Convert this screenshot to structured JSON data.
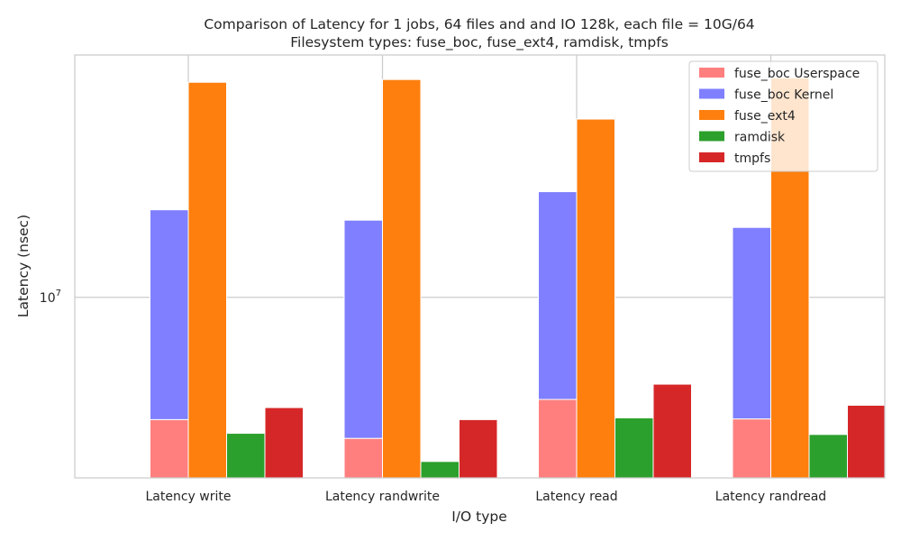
{
  "chart_data": {
    "type": "bar",
    "title_lines": [
      "Comparison of Latency for 1 jobs, 64 files and  and IO 128k, each file = 10G/64",
      "Filesystem types: fuse_boc, fuse_ext4, ramdisk, tmpfs"
    ],
    "xlabel": "I/O type",
    "ylabel": "Latency (nsec)",
    "yscale": "log",
    "ylim": [
      3700000,
      38000000
    ],
    "ytick": {
      "value": 10000000,
      "base": "10",
      "exponent": "7"
    },
    "grid": true,
    "legend_position": "top-right",
    "categories": [
      "Latency write",
      "Latency randwrite",
      "Latency read",
      "Latency randread"
    ],
    "series": [
      {
        "name": "fuse_boc Userspace",
        "color": "#ff7f7f",
        "slot": 0,
        "base": 0,
        "values": [
          5100000,
          4600000,
          5700000,
          5120000
        ]
      },
      {
        "name": "fuse_boc Kernel",
        "color": "#7f7fff",
        "slot": 0,
        "base": "fuse_boc Userspace",
        "values": [
          16200000,
          15300000,
          17900000,
          14700000
        ]
      },
      {
        "name": "fuse_ext4",
        "color": "#ff7f0e",
        "slot": 1,
        "base": 0,
        "values": [
          32700000,
          33200000,
          26700000,
          33500000
        ]
      },
      {
        "name": "ramdisk",
        "color": "#2ca02c",
        "slot": 2,
        "base": 0,
        "values": [
          4730000,
          4050000,
          5150000,
          4700000
        ]
      },
      {
        "name": "tmpfs",
        "color": "#d62728",
        "slot": 3,
        "base": 0,
        "values": [
          5450000,
          5100000,
          6200000,
          5520000
        ]
      }
    ]
  }
}
